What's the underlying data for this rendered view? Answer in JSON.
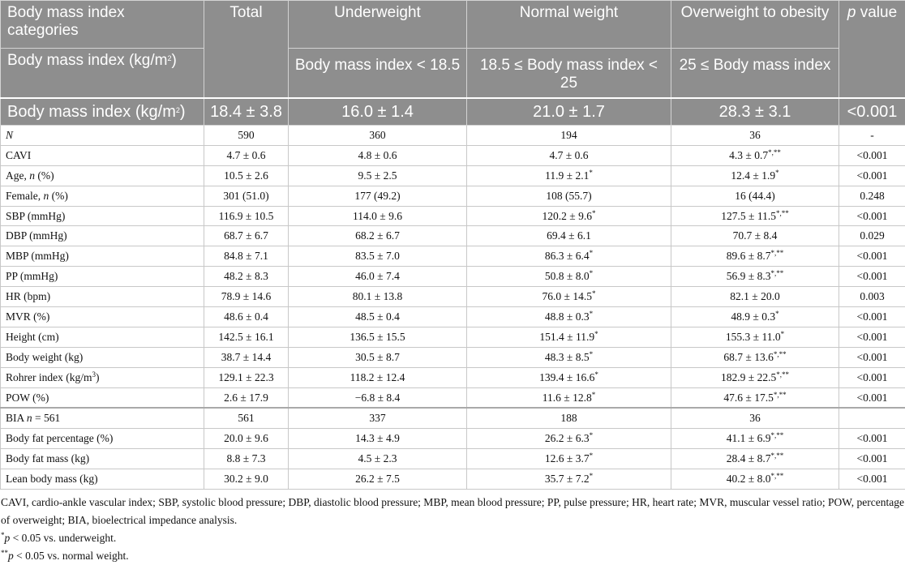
{
  "header": {
    "row1": {
      "col0": "Body mass index categories",
      "col1": "Total",
      "col2": "Underweight",
      "col3": "Normal weight",
      "col4": "Overweight to obesity",
      "col5_p": "p",
      "col5_rest": " value"
    },
    "row2": {
      "col0_main": "Body mass index (kg/m",
      "col0_sup": "2",
      "col0_end": ")",
      "col2": "Body mass index < 18.5",
      "col3": "18.5 ≤ Body mass index < 25",
      "col4": "25 ≤ Body mass index"
    },
    "row3": {
      "col0_main": "Body mass index (kg/m",
      "col0_sup": "2",
      "col0_end": ")",
      "col1": "18.4 ± 3.8",
      "col2": "16.0 ± 1.4",
      "col3": "21.0 ± 1.7",
      "col4": "28.3 ± 3.1",
      "col5": "<0.001"
    }
  },
  "rows": [
    {
      "label_a": "",
      "label_i": "N",
      "label_b": "",
      "sup": "",
      "label_c": "",
      "total": "590",
      "under": "360",
      "normal": "194",
      "normal_sup": "",
      "over": "36",
      "over_sup": "",
      "p": "-"
    },
    {
      "label_a": "CAVI",
      "label_i": "",
      "label_b": "",
      "sup": "",
      "label_c": "",
      "total": "4.7 ± 0.6",
      "under": "4.8 ± 0.6",
      "normal": "4.7 ± 0.6",
      "normal_sup": "",
      "over": "4.3 ± 0.7",
      "over_sup": "*,**",
      "p": "<0.001"
    },
    {
      "label_a": "Age, ",
      "label_i": "n",
      "label_b": " (%)",
      "sup": "",
      "label_c": "",
      "total": "10.5 ± 2.6",
      "under": "9.5 ± 2.5",
      "normal": "11.9 ± 2.1",
      "normal_sup": "*",
      "over": "12.4 ± 1.9",
      "over_sup": "*",
      "p": "<0.001"
    },
    {
      "label_a": "Female, ",
      "label_i": "n",
      "label_b": " (%)",
      "sup": "",
      "label_c": "",
      "total": "301 (51.0)",
      "under": "177 (49.2)",
      "normal": "108 (55.7)",
      "normal_sup": "",
      "over": "16 (44.4)",
      "over_sup": "",
      "p": "0.248"
    },
    {
      "label_a": "SBP (mmHg)",
      "label_i": "",
      "label_b": "",
      "sup": "",
      "label_c": "",
      "total": "116.9 ± 10.5",
      "under": "114.0 ± 9.6",
      "normal": "120.2 ± 9.6",
      "normal_sup": "*",
      "over": "127.5 ± 11.5",
      "over_sup": "*,**",
      "p": "<0.001"
    },
    {
      "label_a": "DBP (mmHg)",
      "label_i": "",
      "label_b": "",
      "sup": "",
      "label_c": "",
      "total": "68.7 ± 6.7",
      "under": "68.2 ± 6.7",
      "normal": "69.4 ± 6.1",
      "normal_sup": "",
      "over": "70.7 ± 8.4",
      "over_sup": "",
      "p": "0.029"
    },
    {
      "label_a": "MBP (mmHg)",
      "label_i": "",
      "label_b": "",
      "sup": "",
      "label_c": "",
      "total": "84.8 ± 7.1",
      "under": "83.5 ± 7.0",
      "normal": "86.3 ± 6.4",
      "normal_sup": "*",
      "over": "89.6 ± 8.7",
      "over_sup": "*,**",
      "p": "<0.001"
    },
    {
      "label_a": "PP (mmHg)",
      "label_i": "",
      "label_b": "",
      "sup": "",
      "label_c": "",
      "total": "48.2 ± 8.3",
      "under": "46.0 ± 7.4",
      "normal": "50.8 ± 8.0",
      "normal_sup": "*",
      "over": "56.9 ± 8.3",
      "over_sup": "*,**",
      "p": "<0.001"
    },
    {
      "label_a": "HR (bpm)",
      "label_i": "",
      "label_b": "",
      "sup": "",
      "label_c": "",
      "total": "78.9 ± 14.6",
      "under": "80.1 ± 13.8",
      "normal": "76.0 ± 14.5",
      "normal_sup": "*",
      "over": "82.1 ± 20.0",
      "over_sup": "",
      "p": "0.003"
    },
    {
      "label_a": "MVR (%)",
      "label_i": "",
      "label_b": "",
      "sup": "",
      "label_c": "",
      "total": "48.6 ± 0.4",
      "under": "48.5 ± 0.4",
      "normal": "48.8 ± 0.3",
      "normal_sup": "*",
      "over": "48.9 ± 0.3",
      "over_sup": "*",
      "p": "<0.001"
    },
    {
      "label_a": "Height (cm)",
      "label_i": "",
      "label_b": "",
      "sup": "",
      "label_c": "",
      "total": "142.5 ± 16.1",
      "under": "136.5 ± 15.5",
      "normal": "151.4 ± 11.9",
      "normal_sup": "*",
      "over": "155.3 ± 11.0",
      "over_sup": "*",
      "p": "<0.001"
    },
    {
      "label_a": "Body weight (kg)",
      "label_i": "",
      "label_b": "",
      "sup": "",
      "label_c": "",
      "total": "38.7 ± 14.4",
      "under": "30.5 ± 8.7",
      "normal": "48.3 ± 8.5",
      "normal_sup": "*",
      "over": "68.7 ± 13.6",
      "over_sup": "*,**",
      "p": "<0.001"
    },
    {
      "label_a": "Rohrer index (kg/m",
      "label_i": "",
      "label_b": "",
      "sup": "3",
      "label_c": ")",
      "total": "129.1 ± 22.3",
      "under": "118.2 ± 12.4",
      "normal": "139.4 ± 16.6",
      "normal_sup": "*",
      "over": "182.9 ± 22.5",
      "over_sup": "*,**",
      "p": "<0.001"
    },
    {
      "label_a": "POW (%)",
      "label_i": "",
      "label_b": "",
      "sup": "",
      "label_c": "",
      "total": "2.6 ± 17.9",
      "under": "−6.8 ± 8.4",
      "normal": "11.6 ± 12.8",
      "normal_sup": "*",
      "over": "47.6 ± 17.5",
      "over_sup": "*,**",
      "p": "<0.001"
    },
    {
      "label_a": "BIA ",
      "label_i": "n",
      "label_b": " = 561",
      "sup": "",
      "label_c": "",
      "total": "561",
      "under": "337",
      "normal": "188",
      "normal_sup": "",
      "over": "36",
      "over_sup": "",
      "p": ""
    },
    {
      "label_a": "Body fat percentage (%)",
      "label_i": "",
      "label_b": "",
      "sup": "",
      "label_c": "",
      "total": "20.0 ± 9.6",
      "under": "14.3 ± 4.9",
      "normal": "26.2 ± 6.3",
      "normal_sup": "*",
      "over": "41.1 ± 6.9",
      "over_sup": "*,**",
      "p": "<0.001"
    },
    {
      "label_a": "Body fat mass (kg)",
      "label_i": "",
      "label_b": "",
      "sup": "",
      "label_c": "",
      "total": "8.8 ± 7.3",
      "under": "4.5 ± 2.3",
      "normal": "12.6 ± 3.7",
      "normal_sup": "*",
      "over": "28.4 ± 8.7",
      "over_sup": "*,**",
      "p": "<0.001"
    },
    {
      "label_a": "Lean body mass (kg)",
      "label_i": "",
      "label_b": "",
      "sup": "",
      "label_c": "",
      "total": "30.2 ± 9.0",
      "under": "26.2 ± 7.5",
      "normal": "35.7 ± 7.2",
      "normal_sup": "*",
      "over": "40.2 ± 8.0",
      "over_sup": "*,**",
      "p": "<0.001"
    }
  ],
  "footnotes": {
    "abbrev": "CAVI, cardio-ankle vascular index; SBP, systolic blood pressure; DBP, diastolic blood pressure; MBP, mean blood pressure; PP, pulse pressure; HR, heart rate; MVR, muscular vessel ratio; POW, percentage of overweight; BIA, bioelectrical impedance analysis.",
    "note1_mark": "*",
    "note1_p": "p",
    "note1_text": " < 0.05 vs. underweight.",
    "note2_mark": "**",
    "note2_p": "p",
    "note2_text": " < 0.05 vs. normal weight."
  }
}
